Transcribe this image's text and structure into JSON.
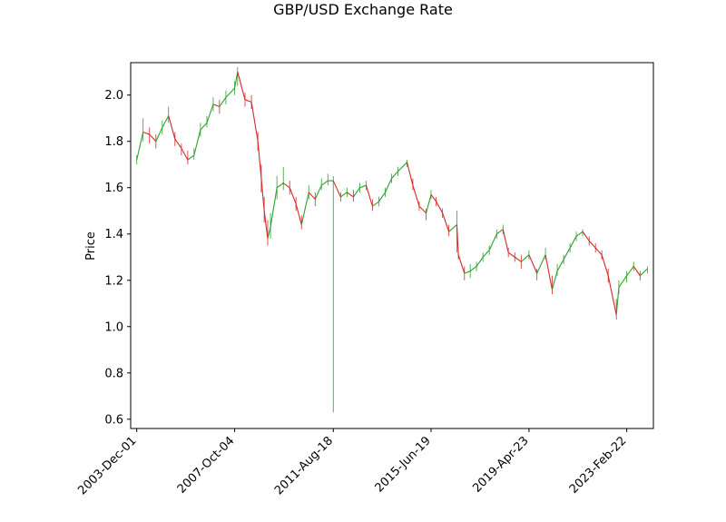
{
  "chart_data": {
    "type": "line",
    "title": "GBP/USD Exchange Rate",
    "xlabel": "",
    "ylabel": "Price",
    "x_tick_labels": [
      "2003-Dec-01",
      "2007-Oct-04",
      "2011-Aug-18",
      "2015-Jun-19",
      "2019-Apr-23",
      "2023-Feb-22"
    ],
    "y_ticks": [
      0.6,
      0.8,
      1.0,
      1.2,
      1.4,
      1.6,
      1.8,
      2.0
    ],
    "y_tick_labels": [
      "0.6",
      "0.8",
      "1.0",
      "1.2",
      "1.4",
      "1.6",
      "1.8",
      "2.0"
    ],
    "xlim": [
      "2003-Sep-05",
      "2024-Mar-10"
    ],
    "ylim": [
      0.56,
      2.14
    ],
    "grid": false,
    "legend": "none",
    "colors": {
      "up": "#2ca02c",
      "down": "#d62728",
      "axis": "#000000"
    },
    "series": [
      {
        "x": [
          "2003-Dec-01",
          "2004-Mar-01",
          "2004-Jun-01",
          "2004-Sep-01",
          "2004-Dec-01",
          "2005-Mar-01",
          "2005-Jun-01",
          "2005-Sep-01",
          "2005-Dec-01",
          "2006-Mar-01",
          "2006-Jun-01",
          "2006-Sep-01",
          "2006-Dec-01",
          "2007-Mar-01",
          "2007-Jun-01",
          "2007-Oct-04",
          "2007-Nov-15",
          "2008-Mar-01",
          "2008-Jun-01",
          "2008-Sep-01",
          "2008-Oct-20",
          "2008-Dec-01",
          "2009-Jan-20",
          "2009-Mar-01",
          "2009-Jun-01",
          "2009-Sep-01",
          "2009-Dec-01",
          "2010-Mar-01",
          "2010-May-20",
          "2010-Sep-01",
          "2010-Dec-01",
          "2011-Mar-01",
          "2011-Jun-01",
          "2011-Aug-18",
          "2011-Dec-01",
          "2012-Mar-01",
          "2012-Jun-01",
          "2012-Sep-01",
          "2012-Dec-01",
          "2013-Mar-01",
          "2013-Jun-01",
          "2013-Sep-01",
          "2013-Dec-01",
          "2014-Mar-01",
          "2014-Jul-10",
          "2014-Oct-01",
          "2015-Jan-01",
          "2015-Apr-10",
          "2015-Jun-19",
          "2015-Sep-01",
          "2015-Dec-01",
          "2016-Mar-01",
          "2016-Jun-23",
          "2016-Jul-15",
          "2016-Oct-10",
          "2017-Jan-01",
          "2017-Apr-01",
          "2017-Jul-01",
          "2017-Oct-01",
          "2018-Jan-15",
          "2018-Apr-15",
          "2018-Jul-01",
          "2018-Oct-01",
          "2019-Jan-01",
          "2019-Apr-23",
          "2019-Aug-15",
          "2019-Dec-15",
          "2020-Mar-20",
          "2020-Jun-01",
          "2020-Sep-01",
          "2020-Dec-01",
          "2021-Mar-01",
          "2021-Jun-01",
          "2021-Sep-01",
          "2021-Dec-01",
          "2022-Mar-01",
          "2022-Jun-01",
          "2022-Sep-26",
          "2022-Nov-01",
          "2023-Feb-22",
          "2023-Jun-01",
          "2023-Sep-01",
          "2023-Dec-15"
        ],
        "y": [
          1.72,
          1.84,
          1.83,
          1.8,
          1.86,
          1.91,
          1.81,
          1.77,
          1.72,
          1.74,
          1.85,
          1.88,
          1.96,
          1.95,
          1.99,
          2.03,
          2.1,
          1.98,
          1.97,
          1.8,
          1.64,
          1.5,
          1.38,
          1.43,
          1.6,
          1.62,
          1.6,
          1.53,
          1.44,
          1.58,
          1.55,
          1.61,
          1.63,
          1.63,
          1.56,
          1.58,
          1.56,
          1.6,
          1.61,
          1.52,
          1.54,
          1.58,
          1.64,
          1.67,
          1.71,
          1.61,
          1.52,
          1.49,
          1.57,
          1.54,
          1.49,
          1.41,
          1.44,
          1.31,
          1.23,
          1.24,
          1.26,
          1.3,
          1.33,
          1.4,
          1.42,
          1.32,
          1.3,
          1.28,
          1.31,
          1.23,
          1.31,
          1.16,
          1.24,
          1.29,
          1.34,
          1.39,
          1.41,
          1.37,
          1.34,
          1.31,
          1.22,
          1.05,
          1.17,
          1.22,
          1.26,
          1.22,
          1.25
        ],
        "hl": [
          [
            1.7,
            1.74
          ],
          [
            1.8,
            1.9
          ],
          [
            1.79,
            1.86
          ],
          [
            1.77,
            1.83
          ],
          [
            1.83,
            1.89
          ],
          [
            1.88,
            1.95
          ],
          [
            1.78,
            1.84
          ],
          [
            1.74,
            1.79
          ],
          [
            1.7,
            1.76
          ],
          [
            1.72,
            1.77
          ],
          [
            1.82,
            1.88
          ],
          [
            1.86,
            1.91
          ],
          [
            1.93,
            1.99
          ],
          [
            1.92,
            1.98
          ],
          [
            1.96,
            2.02
          ],
          [
            2.0,
            2.06
          ],
          [
            2.04,
            2.12
          ],
          [
            1.95,
            2.01
          ],
          [
            1.94,
            2.0
          ],
          [
            1.76,
            1.84
          ],
          [
            1.58,
            1.7
          ],
          [
            1.45,
            1.56
          ],
          [
            1.35,
            1.46
          ],
          [
            1.38,
            1.49
          ],
          [
            1.55,
            1.65
          ],
          [
            1.59,
            1.69
          ],
          [
            1.57,
            1.63
          ],
          [
            1.5,
            1.56
          ],
          [
            1.42,
            1.48
          ],
          [
            1.55,
            1.61
          ],
          [
            1.52,
            1.58
          ],
          [
            1.59,
            1.64
          ],
          [
            1.61,
            1.66
          ],
          [
            0.63,
            1.65
          ],
          [
            1.54,
            1.58
          ],
          [
            1.56,
            1.6
          ],
          [
            1.54,
            1.59
          ],
          [
            1.58,
            1.62
          ],
          [
            1.59,
            1.63
          ],
          [
            1.5,
            1.55
          ],
          [
            1.52,
            1.56
          ],
          [
            1.56,
            1.6
          ],
          [
            1.62,
            1.66
          ],
          [
            1.65,
            1.69
          ],
          [
            1.69,
            1.72
          ],
          [
            1.59,
            1.64
          ],
          [
            1.5,
            1.54
          ],
          [
            1.46,
            1.51
          ],
          [
            1.55,
            1.59
          ],
          [
            1.52,
            1.56
          ],
          [
            1.47,
            1.51
          ],
          [
            1.39,
            1.44
          ],
          [
            1.32,
            1.5
          ],
          [
            1.29,
            1.34
          ],
          [
            1.2,
            1.26
          ],
          [
            1.21,
            1.27
          ],
          [
            1.24,
            1.28
          ],
          [
            1.28,
            1.32
          ],
          [
            1.31,
            1.35
          ],
          [
            1.38,
            1.42
          ],
          [
            1.4,
            1.44
          ],
          [
            1.3,
            1.34
          ],
          [
            1.28,
            1.32
          ],
          [
            1.25,
            1.31
          ],
          [
            1.29,
            1.33
          ],
          [
            1.2,
            1.25
          ],
          [
            1.29,
            1.34
          ],
          [
            1.14,
            1.22
          ],
          [
            1.22,
            1.27
          ],
          [
            1.27,
            1.31
          ],
          [
            1.32,
            1.36
          ],
          [
            1.37,
            1.41
          ],
          [
            1.39,
            1.42
          ],
          [
            1.35,
            1.39
          ],
          [
            1.32,
            1.36
          ],
          [
            1.29,
            1.33
          ],
          [
            1.19,
            1.25
          ],
          [
            1.03,
            1.12
          ],
          [
            1.14,
            1.2
          ],
          [
            1.19,
            1.24
          ],
          [
            1.24,
            1.28
          ],
          [
            1.2,
            1.24
          ],
          [
            1.23,
            1.26
          ]
        ]
      }
    ]
  }
}
